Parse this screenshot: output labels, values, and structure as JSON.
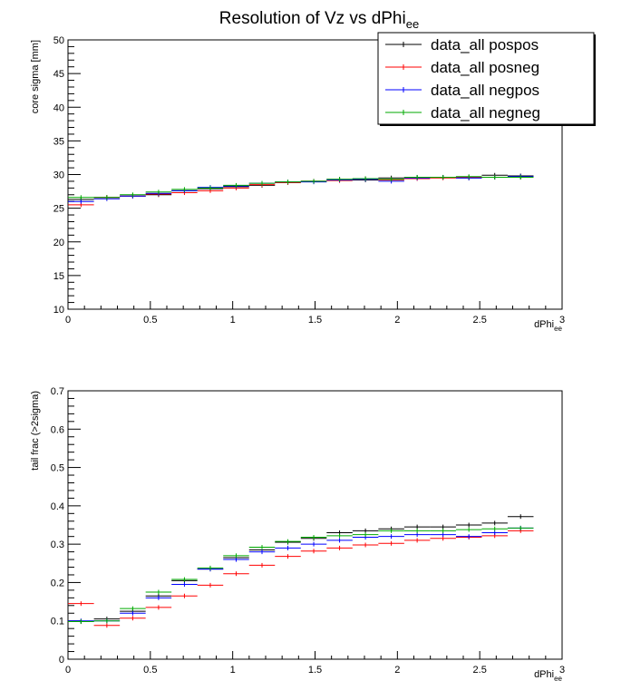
{
  "title": "Resolution of Vz vs  dPhi",
  "title_sub": "ee",
  "legend": {
    "entries": [
      {
        "label": "data_all pospos",
        "color": "#000000"
      },
      {
        "label": "data_all posneg",
        "color": "#ff0000"
      },
      {
        "label": "data_all negpos",
        "color": "#0000ff"
      },
      {
        "label": "data_all negneg",
        "color": "#00aa00"
      }
    ]
  },
  "chart_data": [
    {
      "type": "scatter",
      "style": "histogram-errorbars",
      "ylabel": "core sigma [mm]",
      "xlabel": "dPhi",
      "xlabel_sub": "ee",
      "xlim": [
        0,
        3
      ],
      "ylim": [
        10,
        50
      ],
      "x_ticks": [
        "0",
        "0.5",
        "1",
        "1.5",
        "2",
        "2.5",
        "3"
      ],
      "y_ticks": [
        "10",
        "15",
        "20",
        "25",
        "30",
        "35",
        "40",
        "45",
        "50"
      ],
      "x": [
        0.079,
        0.236,
        0.393,
        0.55,
        0.707,
        0.864,
        1.021,
        1.178,
        1.335,
        1.492,
        1.649,
        1.806,
        1.963,
        2.12,
        2.277,
        2.434,
        2.591,
        2.748
      ],
      "series": [
        {
          "name": "data_all pospos",
          "color": "#000000",
          "values": [
            26.3,
            26.6,
            26.8,
            27.0,
            27.6,
            27.9,
            28.2,
            28.4,
            28.8,
            29.0,
            29.3,
            29.2,
            29.5,
            29.6,
            29.6,
            29.5,
            29.9,
            29.8
          ]
        },
        {
          "name": "data_all posneg",
          "color": "#ff0000",
          "values": [
            25.5,
            26.6,
            26.8,
            27.1,
            27.3,
            27.6,
            28.0,
            28.5,
            28.8,
            29.0,
            29.1,
            29.4,
            29.2,
            29.4,
            29.5,
            29.6,
            29.6,
            29.6
          ]
        },
        {
          "name": "data_all negpos",
          "color": "#0000ff",
          "values": [
            26.0,
            26.4,
            26.8,
            27.2,
            27.6,
            28.1,
            28.3,
            28.7,
            28.9,
            28.9,
            29.2,
            29.3,
            29.0,
            29.5,
            29.6,
            29.5,
            29.6,
            29.7
          ]
        },
        {
          "name": "data_all negneg",
          "color": "#00aa00",
          "values": [
            26.6,
            26.6,
            27.0,
            27.4,
            27.8,
            28.0,
            28.4,
            28.7,
            28.9,
            29.0,
            29.3,
            29.4,
            29.3,
            29.6,
            29.6,
            29.7,
            29.6,
            29.6
          ]
        }
      ]
    },
    {
      "type": "scatter",
      "style": "histogram-errorbars",
      "ylabel": "tail frac (>2sigma)",
      "xlabel": "dPhi",
      "xlabel_sub": "ee",
      "xlim": [
        0,
        3
      ],
      "ylim": [
        0,
        0.7
      ],
      "x_ticks": [
        "0",
        "0.5",
        "1",
        "1.5",
        "2",
        "2.5",
        "3"
      ],
      "y_ticks": [
        "0",
        "0.1",
        "0.2",
        "0.3",
        "0.4",
        "0.5",
        "0.6",
        "0.7"
      ],
      "x": [
        0.079,
        0.236,
        0.393,
        0.55,
        0.707,
        0.864,
        1.021,
        1.178,
        1.335,
        1.492,
        1.649,
        1.806,
        1.963,
        2.12,
        2.277,
        2.434,
        2.591,
        2.748
      ],
      "series": [
        {
          "name": "data_all pospos",
          "color": "#000000",
          "values": [
            0.098,
            0.105,
            0.125,
            0.165,
            0.205,
            0.235,
            0.265,
            0.285,
            0.305,
            0.315,
            0.33,
            0.335,
            0.34,
            0.345,
            0.345,
            0.35,
            0.355,
            0.372
          ]
        },
        {
          "name": "data_all posneg",
          "color": "#ff0000",
          "values": [
            0.145,
            0.088,
            0.107,
            0.135,
            0.165,
            0.193,
            0.223,
            0.245,
            0.268,
            0.282,
            0.29,
            0.298,
            0.302,
            0.31,
            0.315,
            0.318,
            0.322,
            0.335
          ]
        },
        {
          "name": "data_all negpos",
          "color": "#0000ff",
          "values": [
            0.1,
            0.1,
            0.12,
            0.16,
            0.195,
            0.235,
            0.26,
            0.28,
            0.29,
            0.3,
            0.31,
            0.318,
            0.32,
            0.325,
            0.325,
            0.32,
            0.33,
            0.342
          ]
        },
        {
          "name": "data_all negneg",
          "color": "#00aa00",
          "values": [
            0.098,
            0.1,
            0.132,
            0.175,
            0.208,
            0.238,
            0.27,
            0.292,
            0.307,
            0.318,
            0.322,
            0.325,
            0.335,
            0.335,
            0.335,
            0.338,
            0.34,
            0.342
          ]
        }
      ]
    }
  ]
}
